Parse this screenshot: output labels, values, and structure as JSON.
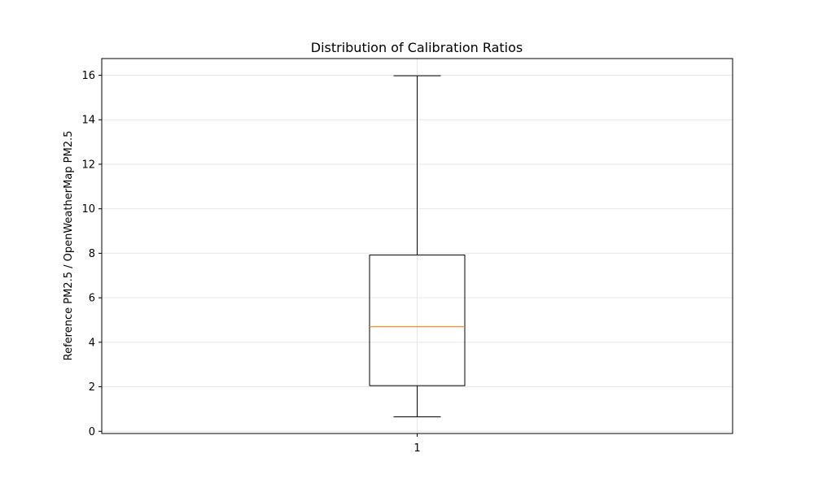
{
  "chart_data": {
    "type": "box",
    "title": "Distribution of Calibration Ratios",
    "xlabel": "",
    "ylabel": "Reference PM2.5 / OpenWeatherMap PM2.5",
    "ylim": [
      -0.1,
      16.75
    ],
    "yticks": [
      0,
      2,
      4,
      6,
      8,
      10,
      12,
      14,
      16
    ],
    "categories": [
      "1"
    ],
    "boxes": [
      {
        "category": "1",
        "whisker_low": 0.65,
        "q1": 2.05,
        "median": 4.7,
        "q3": 7.92,
        "whisker_high": 15.98
      }
    ],
    "grid": true,
    "colors": {
      "box": "#000000",
      "median": "#ff7f0e",
      "grid": "#e6e6e6"
    }
  }
}
